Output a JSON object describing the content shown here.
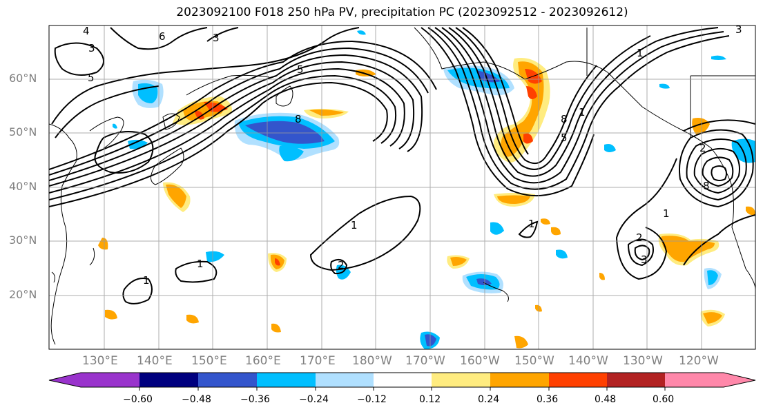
{
  "title": "2023092100 F018 250 hPa PV, precipitation PC (2023092512 - 2023092612)",
  "lat_labels": [
    "60°N",
    "50°N",
    "40°N",
    "30°N",
    "20°N"
  ],
  "lon_labels": [
    "130°E",
    "140°E",
    "150°E",
    "160°E",
    "170°E",
    "180°W",
    "170°W",
    "160°W",
    "150°W",
    "140°W",
    "130°W",
    "120°W"
  ],
  "colorbar": {
    "tick_labels": [
      "−0.60",
      "−0.48",
      "−0.36",
      "−0.24",
      "−0.12",
      "0.12",
      "0.24",
      "0.36",
      "0.48",
      "0.60"
    ],
    "colors": [
      "#9933cc",
      "#00007f",
      "#3355cc",
      "#00bfff",
      "#b0e0ff",
      "#ffffff",
      "#ffec80",
      "#ffa500",
      "#ff4000",
      "#b22222",
      "#ff88aa"
    ]
  },
  "colors": {
    "blue_light": "#b0e0ff",
    "blue": "#00bfff",
    "blue_mid": "#3355cc",
    "blue_dark": "#00007f",
    "yellow": "#ffec80",
    "orange": "#ffa500",
    "red": "#ff4000",
    "grid": "#999999",
    "label": "#808080"
  },
  "contour_labels": [
    "4",
    "6",
    "3",
    "5",
    "3",
    "3",
    "1",
    "8",
    "5",
    "1",
    "8",
    "5",
    "1",
    "2",
    "1",
    "1",
    "1",
    "2",
    "3",
    "2",
    "8",
    "1"
  ]
}
